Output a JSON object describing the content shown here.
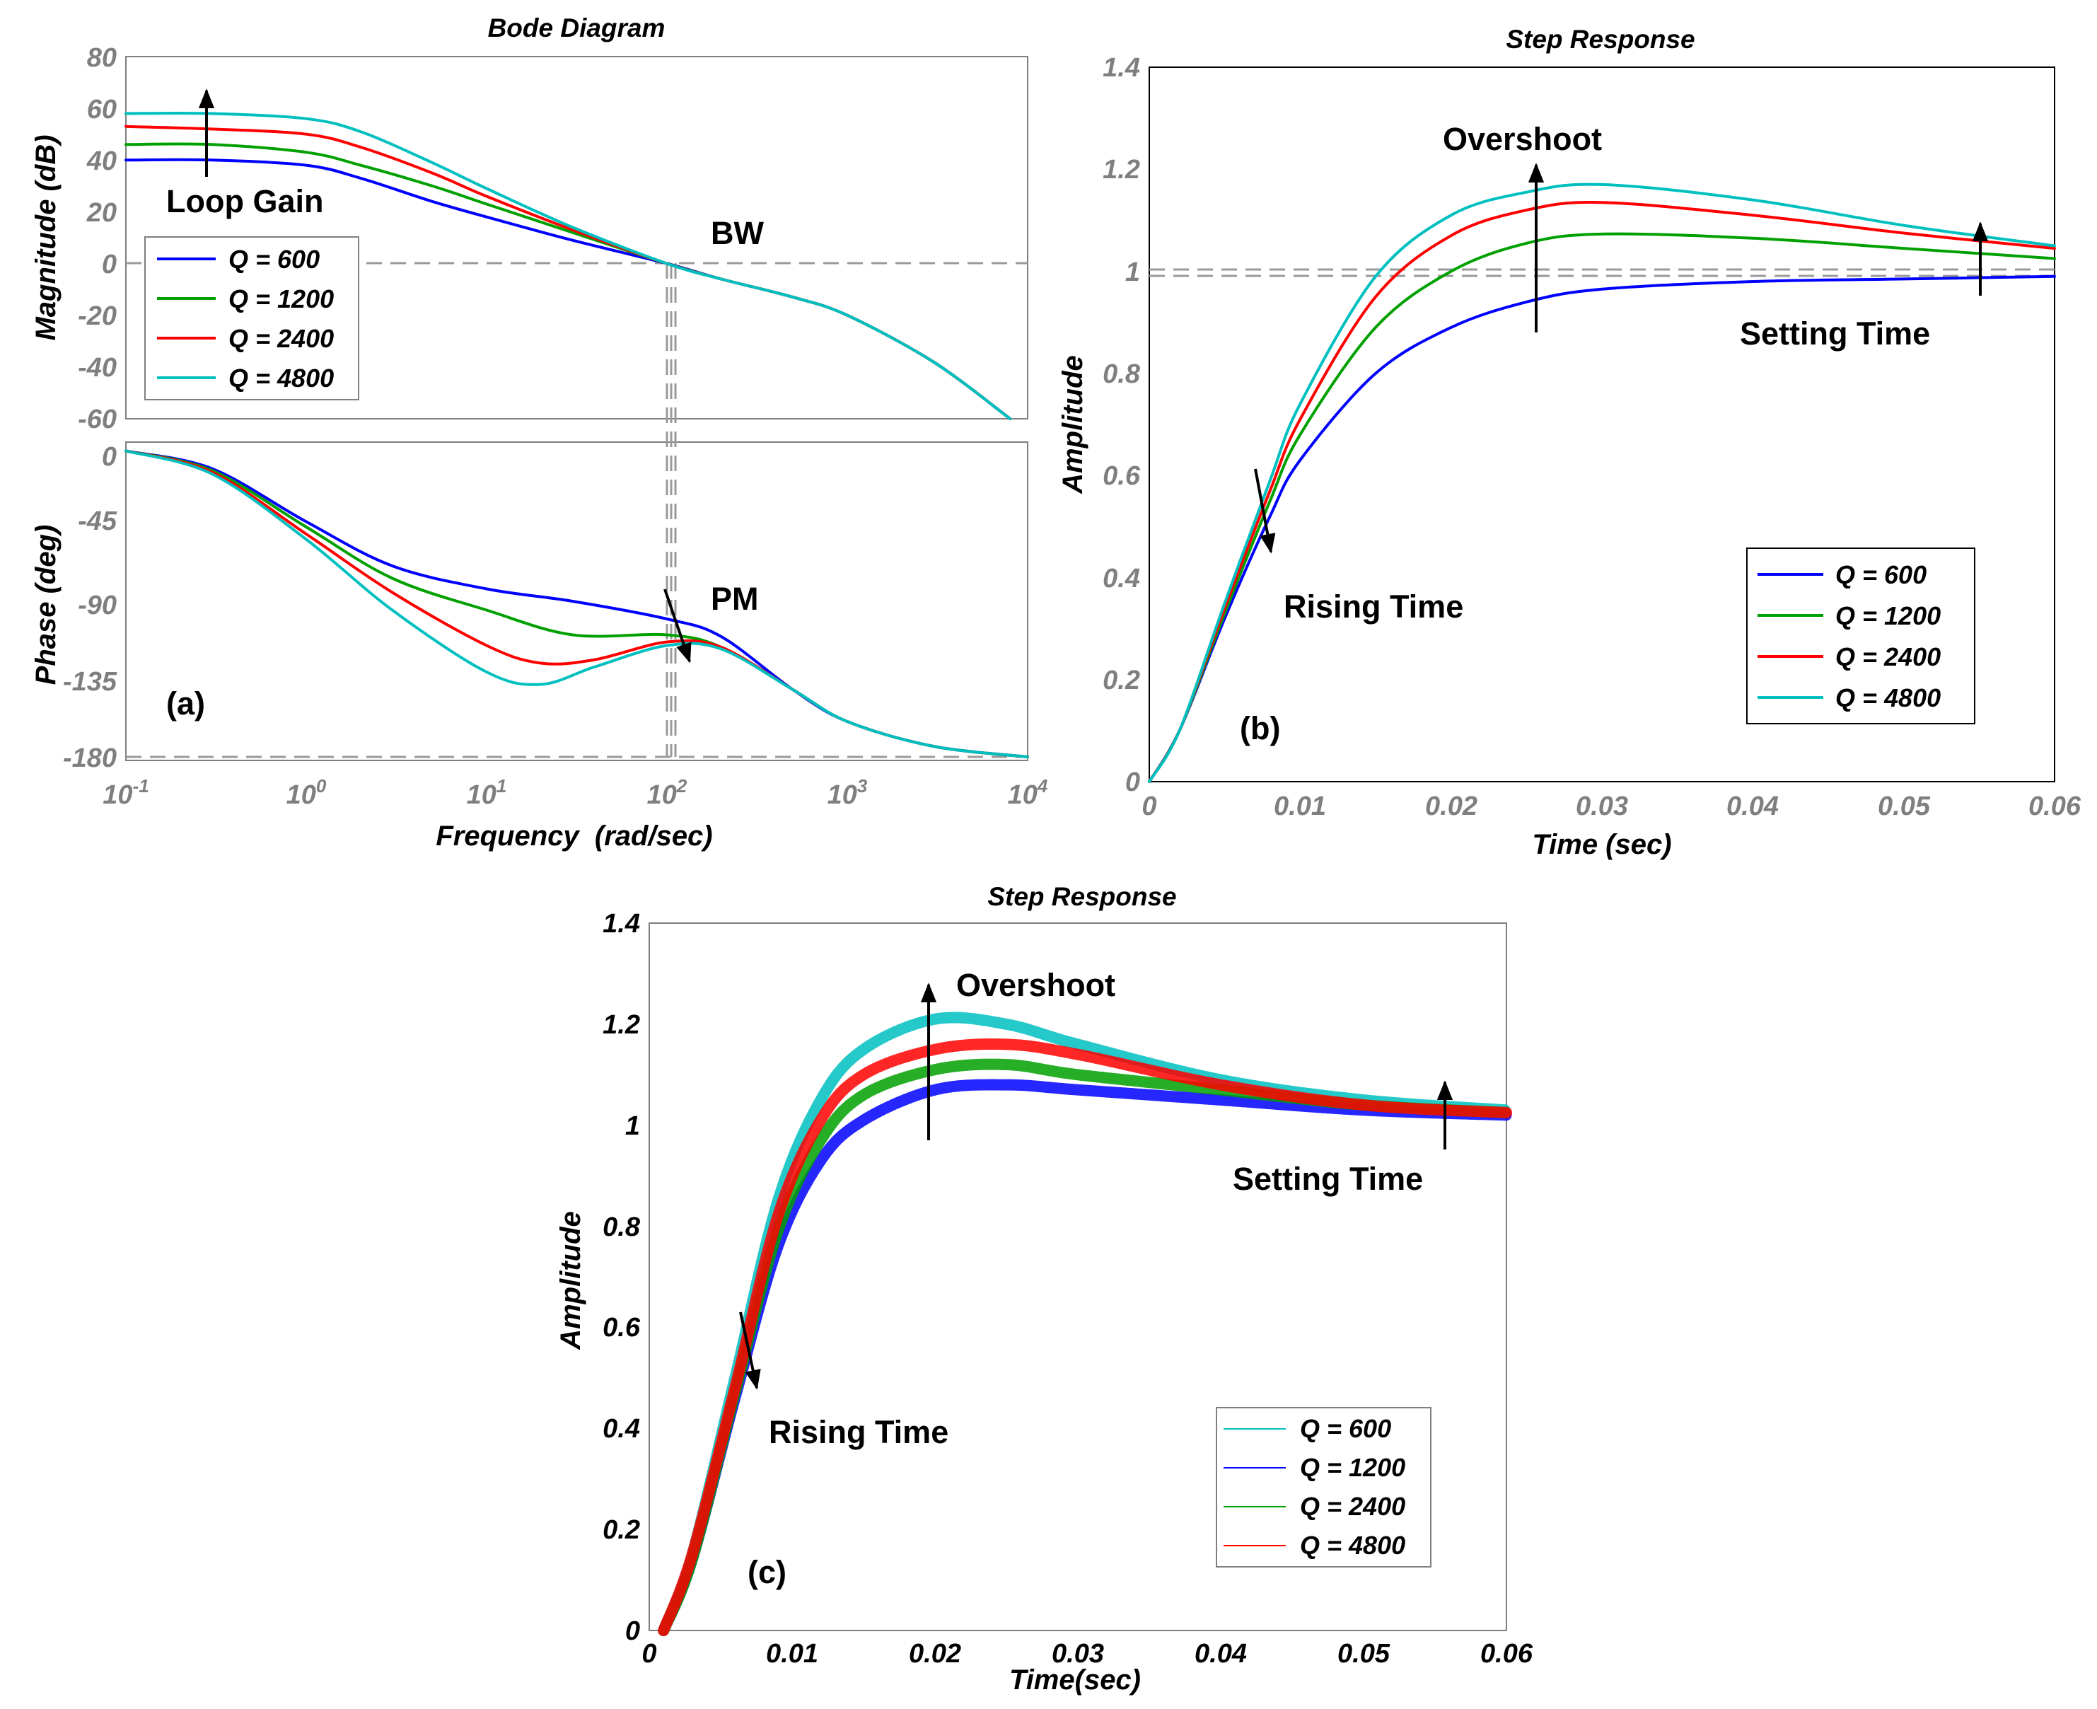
{
  "colors": {
    "q600": "#0000ff",
    "q1200": "#00a000",
    "q2400": "#ff0000",
    "q4800": "#00bfbf",
    "tick_grey": "#7f7f7f",
    "ref_line": "#9a9a9a"
  },
  "icons": {
    "arrow": "arrow-icon"
  },
  "panel_a": {
    "title": "Bode Diagram",
    "mag_ylabel": "Magnitude (dB)",
    "phase_ylabel": "Phase (deg)",
    "xlabel": "Frequency  (rad/sec)",
    "tag": "(a)",
    "mag_ticks": [
      "80",
      "60",
      "40",
      "20",
      "0",
      "-20",
      "-40",
      "-60"
    ],
    "phase_ticks": [
      "0",
      "-45",
      "-90",
      "-135",
      "-180"
    ],
    "x_bases": [
      "10",
      "10",
      "10",
      "10",
      "10",
      "10"
    ],
    "x_exps": [
      "-1",
      "0",
      "1",
      "2",
      "3",
      "4"
    ],
    "annotations": {
      "loop_gain": "Loop Gain",
      "bw": "BW",
      "pm": "PM"
    },
    "legend": [
      "Q = 600",
      "Q = 1200",
      "Q = 2400",
      "Q = 4800"
    ]
  },
  "panel_b": {
    "title": "Step Response",
    "ylabel": "Amplitude",
    "xlabel": "Time (sec)",
    "tag": "(b)",
    "y_ticks": [
      "0",
      "0.2",
      "0.4",
      "0.6",
      "0.8",
      "1",
      "1.2",
      "1.4"
    ],
    "x_ticks": [
      "0",
      "0.01",
      "0.02",
      "0.03",
      "0.04",
      "0.05",
      "0.06"
    ],
    "annotations": {
      "overshoot": "Overshoot",
      "rising": "Rising Time",
      "setting": "Setting Time"
    },
    "legend": [
      "Q = 600",
      "Q = 1200",
      "Q = 2400",
      "Q = 4800"
    ]
  },
  "panel_c": {
    "title": "Step Response",
    "ylabel": "Amplitude",
    "xlabel": "Time(sec)",
    "tag": "(c)",
    "y_ticks": [
      "0",
      "0.2",
      "0.4",
      "0.6",
      "0.8",
      "1",
      "1.2",
      "1.4"
    ],
    "x_ticks": [
      "0",
      "0.01",
      "0.02",
      "0.03",
      "0.04",
      "0.05",
      "0.06"
    ],
    "annotations": {
      "overshoot": "Overshoot",
      "rising": "Rising Time",
      "setting": "Setting Time"
    },
    "legend": [
      "Q = 600",
      "Q = 1200",
      "Q = 2400",
      "Q = 4800"
    ]
  },
  "chart_data": [
    {
      "type": "line",
      "panel": "(a) magnitude",
      "title": "Bode Diagram",
      "ylabel": "Magnitude (dB)",
      "xscale": "log",
      "xlim": [
        0.1,
        10000
      ],
      "ylim": [
        -60,
        80
      ],
      "series": [
        {
          "name": "Q = 600",
          "color": "#0000ff",
          "x": [
            0.1,
            0.3,
            1,
            2,
            5,
            10,
            30,
            100,
            200,
            500,
            1000,
            3000,
            8000
          ],
          "y": [
            40,
            40,
            38,
            33,
            24,
            18,
            9,
            0,
            -6,
            -13,
            -20,
            -38,
            -60
          ]
        },
        {
          "name": "Q = 1200",
          "color": "#00a000",
          "x": [
            0.1,
            0.3,
            1,
            2,
            5,
            10,
            30,
            100,
            200,
            500,
            1000,
            3000,
            8000
          ],
          "y": [
            46,
            46,
            43,
            38,
            30,
            23,
            12,
            0,
            -6,
            -13,
            -20,
            -38,
            -60
          ]
        },
        {
          "name": "Q = 2400",
          "color": "#ff0000",
          "x": [
            0.1,
            0.3,
            1,
            2,
            5,
            10,
            30,
            100,
            200,
            500,
            1000,
            3000,
            8000
          ],
          "y": [
            53,
            52,
            50,
            45,
            35,
            26,
            13,
            0,
            -6,
            -13,
            -20,
            -38,
            -60
          ]
        },
        {
          "name": "Q = 4800",
          "color": "#00bfbf",
          "x": [
            0.1,
            0.3,
            1,
            2,
            5,
            10,
            30,
            100,
            200,
            500,
            1000,
            3000,
            8000
          ],
          "y": [
            58,
            58,
            56,
            51,
            39,
            29,
            14,
            0,
            -6,
            -13,
            -20,
            -38,
            -60
          ]
        }
      ]
    },
    {
      "type": "line",
      "panel": "(a) phase",
      "ylabel": "Phase (deg)",
      "xlabel": "Frequency  (rad/sec)",
      "xscale": "log",
      "xlim": [
        0.1,
        10000
      ],
      "ylim": [
        -180,
        0
      ],
      "series": [
        {
          "name": "Q = 600",
          "color": "#0000ff",
          "x": [
            0.1,
            0.3,
            1,
            3,
            10,
            30,
            100,
            200,
            500,
            1000,
            3000,
            10000
          ],
          "y": [
            -5,
            -15,
            -45,
            -70,
            -83,
            -90,
            -100,
            -110,
            -140,
            -158,
            -172,
            -178
          ]
        },
        {
          "name": "Q = 1200",
          "color": "#00a000",
          "x": [
            0.1,
            0.3,
            1,
            3,
            10,
            30,
            100,
            200,
            500,
            1000,
            3000,
            10000
          ],
          "y": [
            -5,
            -16,
            -48,
            -77,
            -95,
            -109,
            -109,
            -116,
            -140,
            -158,
            -172,
            -178
          ]
        },
        {
          "name": "Q = 2400",
          "color": "#ff0000",
          "x": [
            0.1,
            0.3,
            1,
            3,
            10,
            20,
            40,
            100,
            200,
            500,
            1000,
            3000,
            10000
          ],
          "y": [
            -5,
            -17,
            -52,
            -85,
            -115,
            -125,
            -123,
            -113,
            -116,
            -140,
            -158,
            -172,
            -178
          ]
        },
        {
          "name": "Q = 4800",
          "color": "#00bfbf",
          "x": [
            0.1,
            0.3,
            1,
            3,
            10,
            20,
            40,
            100,
            200,
            500,
            1000,
            3000,
            10000
          ],
          "y": [
            -5,
            -18,
            -55,
            -95,
            -130,
            -137,
            -127,
            -115,
            -117,
            -140,
            -158,
            -172,
            -178
          ]
        }
      ]
    },
    {
      "type": "line",
      "panel": "(b)",
      "title": "Step Response",
      "xlabel": "Time (sec)",
      "ylabel": "Amplitude",
      "xlim": [
        0,
        0.06
      ],
      "ylim": [
        0,
        1.4
      ],
      "series": [
        {
          "name": "Q = 600",
          "color": "#0000ff",
          "x": [
            0,
            0.002,
            0.005,
            0.008,
            0.01,
            0.015,
            0.02,
            0.025,
            0.03,
            0.04,
            0.05,
            0.06
          ],
          "y": [
            0,
            0.1,
            0.32,
            0.52,
            0.63,
            0.8,
            0.89,
            0.94,
            0.965,
            0.98,
            0.985,
            0.99
          ]
        },
        {
          "name": "Q = 1200",
          "color": "#00a000",
          "x": [
            0,
            0.002,
            0.005,
            0.008,
            0.01,
            0.015,
            0.02,
            0.025,
            0.03,
            0.04,
            0.05,
            0.06
          ],
          "y": [
            0,
            0.1,
            0.33,
            0.55,
            0.68,
            0.89,
            1.0,
            1.055,
            1.073,
            1.065,
            1.045,
            1.025
          ]
        },
        {
          "name": "Q = 2400",
          "color": "#ff0000",
          "x": [
            0,
            0.002,
            0.005,
            0.008,
            0.01,
            0.015,
            0.02,
            0.025,
            0.03,
            0.04,
            0.05,
            0.06
          ],
          "y": [
            0,
            0.1,
            0.34,
            0.57,
            0.71,
            0.95,
            1.07,
            1.12,
            1.135,
            1.11,
            1.075,
            1.045
          ]
        },
        {
          "name": "Q = 4800",
          "color": "#00bfbf",
          "x": [
            0,
            0.002,
            0.005,
            0.008,
            0.01,
            0.015,
            0.02,
            0.025,
            0.03,
            0.04,
            0.05,
            0.06
          ],
          "y": [
            0,
            0.1,
            0.35,
            0.59,
            0.74,
            0.99,
            1.11,
            1.155,
            1.17,
            1.14,
            1.09,
            1.05
          ]
        }
      ]
    },
    {
      "type": "line",
      "panel": "(c)",
      "title": "Step Response",
      "xlabel": "Time(sec)",
      "ylabel": "Amplitude",
      "xlim": [
        0,
        0.06
      ],
      "ylim": [
        0,
        1.4
      ],
      "series": [
        {
          "name": "Q = 600",
          "color": "#00bfbf",
          "x": [
            0.001,
            0.003,
            0.006,
            0.009,
            0.012,
            0.015,
            0.02,
            0.025,
            0.03,
            0.04,
            0.05,
            0.06
          ],
          "y": [
            0,
            0.15,
            0.5,
            0.85,
            1.05,
            1.15,
            1.21,
            1.2,
            1.16,
            1.09,
            1.05,
            1.03
          ]
        },
        {
          "name": "Q = 1200",
          "color": "#0000ff",
          "x": [
            0.001,
            0.003,
            0.006,
            0.009,
            0.012,
            0.015,
            0.02,
            0.025,
            0.03,
            0.04,
            0.05,
            0.06
          ],
          "y": [
            0,
            0.14,
            0.46,
            0.76,
            0.93,
            1.01,
            1.07,
            1.08,
            1.07,
            1.05,
            1.03,
            1.02
          ]
        },
        {
          "name": "Q = 2400",
          "color": "#00a000",
          "x": [
            0.001,
            0.003,
            0.006,
            0.009,
            0.012,
            0.015,
            0.02,
            0.025,
            0.03,
            0.04,
            0.05,
            0.06
          ],
          "y": [
            0,
            0.14,
            0.47,
            0.79,
            0.97,
            1.06,
            1.11,
            1.12,
            1.1,
            1.07,
            1.04,
            1.025
          ]
        },
        {
          "name": "Q = 4800",
          "color": "#ff0000",
          "x": [
            0.001,
            0.003,
            0.006,
            0.009,
            0.012,
            0.015,
            0.02,
            0.025,
            0.03,
            0.04,
            0.05,
            0.06
          ],
          "y": [
            0,
            0.15,
            0.48,
            0.82,
            1.01,
            1.1,
            1.15,
            1.16,
            1.14,
            1.08,
            1.04,
            1.025
          ]
        }
      ]
    }
  ]
}
